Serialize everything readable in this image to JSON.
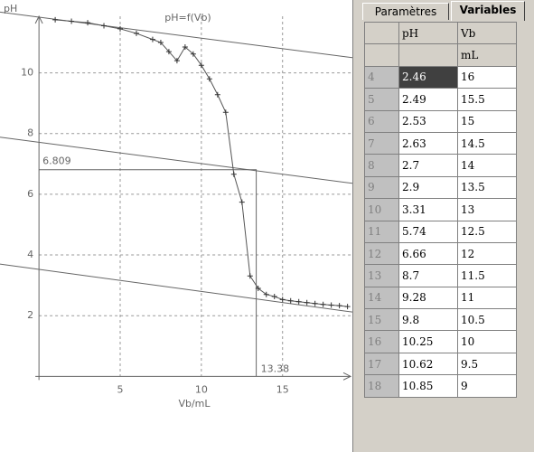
{
  "tabs": [
    "Paramètres",
    "Variables"
  ],
  "table": {
    "columns": [
      {
        "name": "pH"
      },
      {
        "name": "Vb",
        "unit": "mL"
      }
    ],
    "rows": [
      [
        "4",
        "2.46",
        "16"
      ],
      [
        "5",
        "2.49",
        "15.5"
      ],
      [
        "6",
        "2.53",
        "15"
      ],
      [
        "7",
        "2.63",
        "14.5"
      ],
      [
        "8",
        "2.7",
        "14"
      ],
      [
        "9",
        "2.9",
        "13.5"
      ],
      [
        "10",
        "3.31",
        "13"
      ],
      [
        "11",
        "5.74",
        "12.5"
      ],
      [
        "12",
        "6.66",
        "12"
      ],
      [
        "13",
        "8.7",
        "11.5"
      ],
      [
        "14",
        "9.28",
        "11"
      ],
      [
        "15",
        "9.8",
        "10.5"
      ],
      [
        "16",
        "10.25",
        "10"
      ],
      [
        "17",
        "10.62",
        "9.5"
      ],
      [
        "18",
        "10.85",
        "9"
      ]
    ]
  },
  "chart_data": {
    "type": "line",
    "title": "pH=f(Vb)",
    "x_label": "Vb/mL",
    "y_label": "pH",
    "x": [
      1,
      2,
      3,
      4,
      5,
      6,
      7,
      7.5,
      8,
      8.5,
      9,
      9.5,
      10,
      10.5,
      11,
      11.5,
      12,
      12.5,
      13,
      13.5,
      14,
      14.5,
      15,
      15.5,
      16,
      16.5,
      17,
      17.5,
      18,
      18.5,
      19
    ],
    "series": [
      {
        "name": "pH",
        "color": "#555555",
        "values": [
          11.75,
          11.7,
          11.65,
          11.55,
          11.45,
          11.3,
          11.1,
          11.0,
          10.7,
          10.4,
          10.85,
          10.62,
          10.25,
          9.8,
          9.28,
          8.7,
          6.66,
          5.74,
          3.31,
          2.9,
          2.7,
          2.63,
          2.53,
          2.49,
          2.46,
          2.43,
          2.4,
          2.37,
          2.35,
          2.33,
          2.3
        ]
      }
    ],
    "lines": [
      {
        "x": [
          -2.4,
          19.3
        ],
        "y": [
          12.0,
          10.5
        ]
      },
      {
        "x": [
          -2.4,
          19.3
        ],
        "y": [
          7.88,
          6.36
        ]
      },
      {
        "x": [
          -2.4,
          19.3
        ],
        "y": [
          3.7,
          2.12
        ]
      }
    ],
    "annotations": [
      {
        "text": "6.809",
        "x": 13.38,
        "y": 6.809
      },
      {
        "text": "13.38",
        "x": 13.38,
        "y": 6.809
      }
    ],
    "xlim": [
      -2.4,
      19.3
    ],
    "ylim": [
      -1.3,
      12.4
    ],
    "xticks": [
      5,
      10,
      15
    ],
    "yticks": [
      2,
      4,
      6,
      8,
      10
    ],
    "grid": true
  }
}
